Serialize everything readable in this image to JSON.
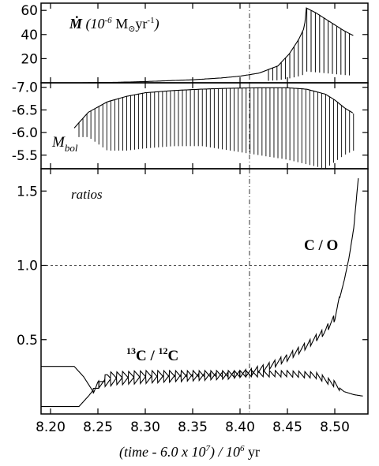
{
  "chart_data": [
    {
      "type": "line",
      "panel": "mdot",
      "label_html": [
        "Ṁ",
        " (10",
        "-6",
        " M",
        "⊙",
        "yr",
        "-1",
        ")"
      ],
      "ylim": [
        0,
        66
      ],
      "yticks": [
        20,
        40,
        60
      ],
      "ytick_labels": [
        "20",
        "40",
        "60"
      ],
      "xlim": [
        8.19,
        8.535
      ],
      "series": [
        {
          "x": [
            8.23,
            8.25,
            8.27,
            8.3,
            8.32,
            8.35,
            8.38,
            8.4,
            8.42,
            8.44,
            8.452,
            8.462,
            8.468,
            8.47,
            8.48,
            8.49,
            8.5,
            8.51,
            8.52
          ],
          "y": [
            0.0,
            0.2,
            0.4,
            1.0,
            1.6,
            2.5,
            4.0,
            5.5,
            8.0,
            14.0,
            24.0,
            36.0,
            46.0,
            62.0,
            58.0,
            53.0,
            48.0,
            43.0,
            39.0
          ],
          "pulses": "mass-loss spikes at each thermal pulse",
          "pulse_peaks": [
            [
              8.42,
              8.5
            ],
            [
              8.44,
              15.0
            ],
            [
              8.45,
              22.0
            ],
            [
              8.458,
              32.0
            ],
            [
              8.464,
              42.0
            ],
            [
              8.468,
              48.0
            ],
            [
              8.472,
              35.0
            ],
            [
              8.48,
              30.0
            ],
            [
              8.49,
              25.0
            ],
            [
              8.5,
              20.0
            ],
            [
              8.51,
              16.0
            ],
            [
              8.52,
              12.0
            ]
          ]
        }
      ]
    },
    {
      "type": "line",
      "panel": "mbol",
      "label_parts": [
        "M",
        "bol"
      ],
      "ylim": [
        -5.2,
        -7.1
      ],
      "yticks": [
        -7.0,
        -6.5,
        -6.0,
        -5.5
      ],
      "ytick_labels": [
        "-7.0",
        "-6.5",
        "-6.0",
        "-5.5"
      ],
      "xlim": [
        8.19,
        8.535
      ],
      "series": [
        {
          "x": [
            8.225,
            8.24,
            8.26,
            8.28,
            8.3,
            8.33,
            8.36,
            8.39,
            8.42,
            8.45,
            8.47,
            8.49,
            8.5,
            8.51,
            8.52
          ],
          "y": [
            -6.1,
            -6.45,
            -6.68,
            -6.8,
            -6.88,
            -6.93,
            -6.96,
            -6.98,
            -6.99,
            -6.99,
            -6.96,
            -6.85,
            -6.72,
            -6.55,
            -6.42
          ],
          "dip_min": [
            -5.9,
            -5.9,
            -5.6,
            -5.6,
            -5.65,
            -5.7,
            -5.7,
            -5.6,
            -5.5,
            -5.4,
            -5.3,
            -5.2,
            -5.35,
            -5.5,
            -5.6
          ]
        }
      ]
    },
    {
      "type": "line",
      "panel": "ratios",
      "panel_label": "ratios",
      "ylim": [
        0.0,
        1.65
      ],
      "yticks": [
        0.5,
        1.0,
        1.5
      ],
      "ytick_labels": [
        "0.5",
        "1.0",
        "1.5"
      ],
      "xlim": [
        8.19,
        8.535
      ],
      "xticks": [
        8.2,
        8.25,
        8.3,
        8.35,
        8.4,
        8.45,
        8.5
      ],
      "xtick_labels": [
        "8.20",
        "8.25",
        "8.30",
        "8.35",
        "8.40",
        "8.45",
        "8.50"
      ],
      "xlabel_parts": [
        "(time - 6.0 x 10",
        "7",
        ") / 10",
        "6",
        " yr"
      ],
      "reference_line_y": 1.0,
      "reference_line_x": 8.41,
      "series": [
        {
          "name_parts": [
            "C / O"
          ],
          "x": [
            8.19,
            8.215,
            8.23,
            8.24,
            8.25,
            8.27,
            8.3,
            8.33,
            8.36,
            8.39,
            8.41,
            8.43,
            8.45,
            8.47,
            8.49,
            8.5,
            8.51,
            8.515,
            8.52,
            8.525
          ],
          "y": [
            0.05,
            0.05,
            0.05,
            0.12,
            0.2,
            0.22,
            0.23,
            0.24,
            0.25,
            0.26,
            0.28,
            0.32,
            0.38,
            0.46,
            0.56,
            0.65,
            0.9,
            1.05,
            1.25,
            1.6
          ],
          "oscillation": 0.05
        },
        {
          "name_parts": [
            "13",
            "C / ",
            "12",
            "C"
          ],
          "x": [
            8.19,
            8.225,
            8.235,
            8.245,
            8.26,
            8.3,
            8.35,
            8.4,
            8.45,
            8.48,
            8.5,
            8.51,
            8.52,
            8.53
          ],
          "y": [
            0.32,
            0.32,
            0.25,
            0.15,
            0.26,
            0.27,
            0.27,
            0.27,
            0.27,
            0.26,
            0.2,
            0.15,
            0.13,
            0.12
          ],
          "oscillation": 0.045
        }
      ]
    }
  ]
}
